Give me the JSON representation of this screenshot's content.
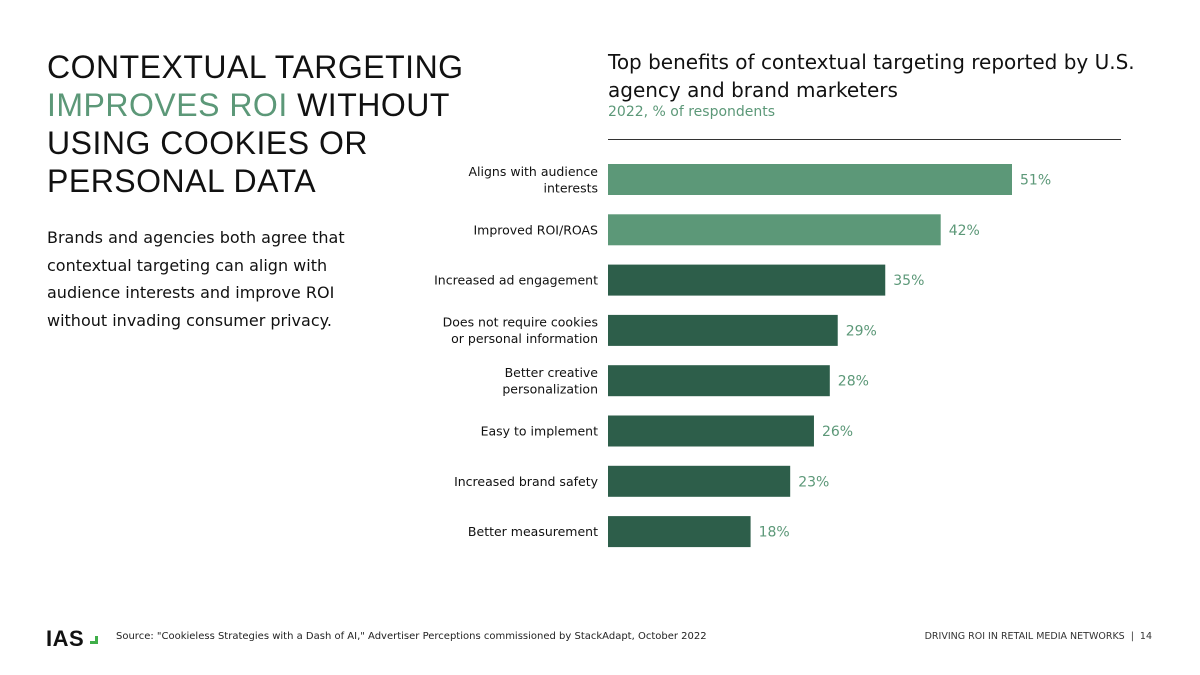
{
  "headline": {
    "part1": "CONTEXTUAL TARGETING ",
    "accent": "IMPROVES ROI",
    "part2": " WITHOUT USING COOKIES OR PERSONAL DATA"
  },
  "intro": "Brands and agencies both agree that contextual targeting can align with audience interests and improve ROI without invading consumer privacy.",
  "colors": {
    "light": "#5c9878",
    "dark": "#2d5e4a",
    "label": "#5c9878"
  },
  "chart_data": {
    "type": "bar",
    "orientation": "horizontal",
    "title": "Top benefits of contextual targeting reported by U.S. agency and brand marketers",
    "subtitle": "2022, % of respondents",
    "categories": [
      [
        "Aligns with audience",
        "interests"
      ],
      [
        "Improved ROI/ROAS"
      ],
      [
        "Increased ad engagement"
      ],
      [
        "Does not require cookies",
        "or personal information"
      ],
      [
        "Better creative",
        "personalization"
      ],
      [
        "Easy to implement"
      ],
      [
        "Increased brand safety"
      ],
      [
        "Better measurement"
      ]
    ],
    "values": [
      51,
      42,
      35,
      29,
      28,
      26,
      23,
      18
    ],
    "value_labels": [
      "51%",
      "42%",
      "35%",
      "29%",
      "28%",
      "26%",
      "23%",
      "18%"
    ],
    "highlighted": [
      true,
      true,
      false,
      false,
      false,
      false,
      false,
      false
    ],
    "grid": false
  },
  "footer": {
    "logo": "IAS",
    "source": "Source: \"Cookieless Strategies with a Dash of AI,\" Advertiser Perceptions commissioned by StackAdapt, October 2022",
    "title": "DRIVING ROI IN RETAIL MEDIA NETWORKS",
    "page": "14"
  }
}
